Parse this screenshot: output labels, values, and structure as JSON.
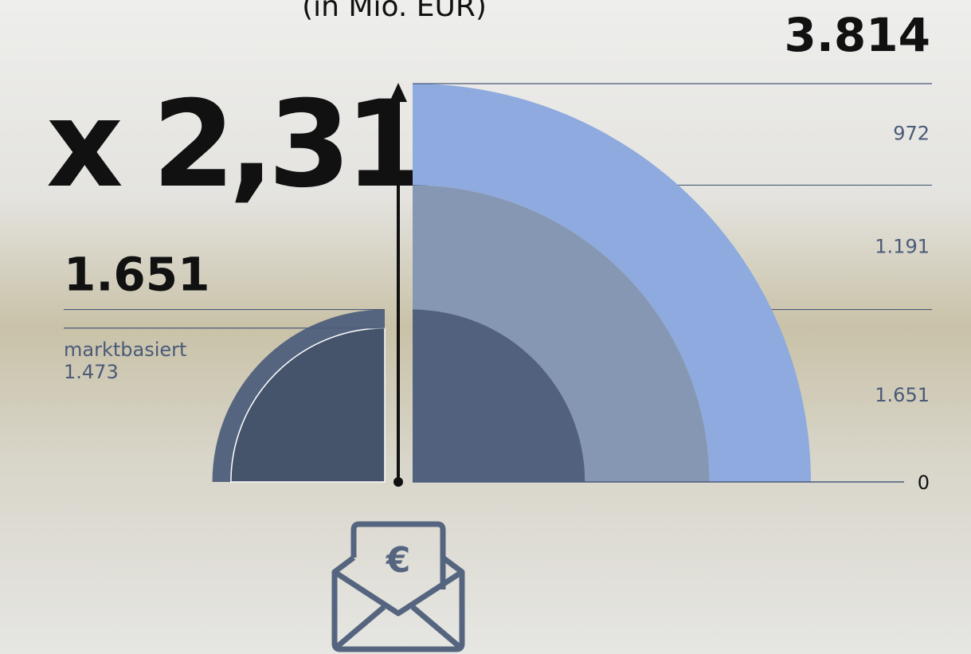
{
  "chart_data": {
    "type": "quarter-rings",
    "title": "(in Mio. EUR)",
    "annotation": "x 2,31",
    "total": 3814,
    "total_label": "3.814",
    "ylim": [
      0,
      3814
    ],
    "yticks": [
      0
    ],
    "left_series": [
      {
        "values": [
          1651
        ],
        "value_labels": [
          "1.651"
        ],
        "color": "#56657f"
      },
      {
        "name": "marktbasiert",
        "values": [
          1473
        ],
        "value_labels": [
          "1.473"
        ],
        "color": "#45546b"
      }
    ],
    "series": [
      {
        "values": [
          1651,
          1191,
          972
        ],
        "value_labels": [
          "1.651",
          "1.191",
          "972"
        ],
        "colors": [
          "#52617e",
          "#8597b2",
          "#8eaade"
        ]
      }
    ]
  }
}
